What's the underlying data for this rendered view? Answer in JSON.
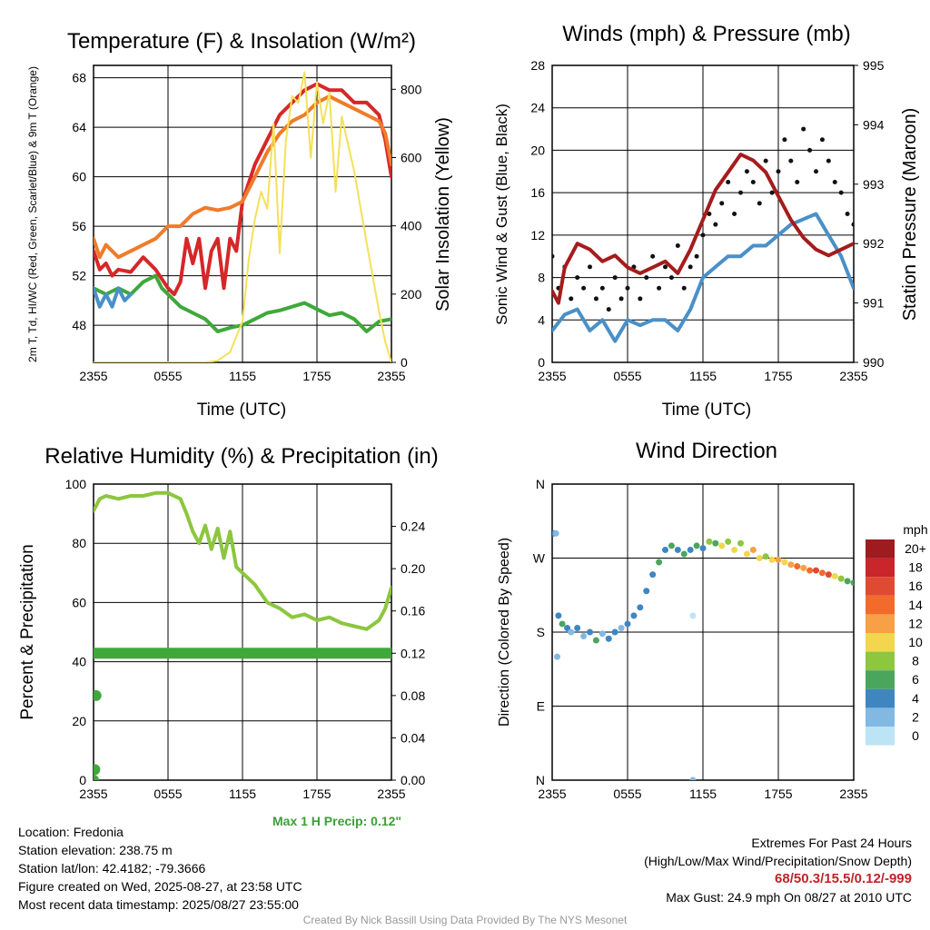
{
  "chart_data": [
    {
      "type": "line",
      "title": "Temperature (F) & Insolation (W/m²)",
      "xlabel": "Time (UTC)",
      "ylabel": "2m T, Td, HI/WC (Red, Green, Scarlet/Blue) & 9m T (Orange)",
      "ylabel_right": "Solar Insolation (Yellow)",
      "x_ticks": [
        "2355",
        "0555",
        "1155",
        "1755",
        "2355"
      ],
      "y_ticks": [
        "48",
        "52",
        "56",
        "60",
        "64",
        "68"
      ],
      "y_right_ticks": [
        "0",
        "200",
        "400",
        "600",
        "800"
      ],
      "xlim_hours": [
        0,
        24
      ],
      "ylim": [
        45,
        69
      ],
      "ylim_right": [
        0,
        870
      ],
      "series": [
        {
          "axis": "left",
          "color": "#d62728",
          "x": [
            0,
            0.5,
            1,
            1.5,
            2,
            3,
            4,
            5,
            6,
            6.5,
            7,
            7.5,
            8,
            8.5,
            9,
            9.5,
            10,
            10.5,
            11,
            11.5,
            12,
            13,
            14,
            15,
            16,
            17,
            18,
            19,
            20,
            21,
            22,
            23,
            23.5,
            24
          ],
          "values": [
            54,
            52.5,
            53,
            52,
            52.5,
            52.3,
            53.5,
            52.5,
            51,
            50.5,
            51.5,
            55,
            53,
            55,
            51,
            54,
            55,
            51,
            55,
            54,
            58,
            61,
            63,
            65,
            66,
            67,
            67.5,
            67,
            67,
            66,
            66,
            65,
            63,
            60
          ]
        },
        {
          "axis": "left",
          "color": "#f07b2a",
          "x": [
            0,
            0.5,
            1,
            2,
            3,
            4,
            5,
            6,
            7,
            8,
            9,
            10,
            11,
            12,
            13,
            14,
            15,
            16,
            17,
            18,
            19,
            20,
            21,
            22,
            23,
            23.5,
            24
          ],
          "values": [
            55,
            53.5,
            54.5,
            53.5,
            54,
            54.5,
            55,
            56,
            56,
            57,
            57.5,
            57.3,
            57.5,
            58,
            60,
            62,
            63.5,
            64.5,
            65,
            66,
            66.5,
            66,
            65.5,
            65,
            64.5,
            63.5,
            61
          ]
        },
        {
          "axis": "left",
          "color": "#3fa83a",
          "x": [
            0,
            1,
            2,
            3,
            4,
            5,
            5.5,
            6,
            7,
            8,
            9,
            10,
            11,
            12,
            13,
            14,
            15,
            16,
            17,
            18,
            19,
            20,
            21,
            22,
            23,
            24
          ],
          "values": [
            51,
            50.5,
            51,
            50.5,
            51.5,
            52,
            51,
            50.5,
            49.5,
            49,
            48.5,
            47.5,
            47.8,
            48,
            48.5,
            49,
            49.2,
            49.5,
            49.8,
            49.3,
            48.8,
            49,
            48.5,
            47.5,
            48.3,
            48.5
          ]
        },
        {
          "axis": "left",
          "color": "#4a90c8",
          "x": [
            0,
            0.5,
            1,
            1.5,
            2,
            2.5,
            3
          ],
          "values": [
            51,
            49.5,
            50.5,
            49.5,
            51,
            50,
            50.5
          ]
        },
        {
          "axis": "right",
          "color": "#f5e05a",
          "x": [
            0,
            9,
            10,
            11,
            12,
            12.5,
            13,
            13.5,
            14,
            14.5,
            15,
            15.5,
            16,
            16.5,
            17,
            17.5,
            18,
            18.5,
            19,
            19.5,
            20,
            21,
            22,
            22.5,
            23,
            23.5,
            24
          ],
          "values": [
            0,
            0,
            5,
            30,
            120,
            300,
            420,
            500,
            450,
            700,
            320,
            650,
            780,
            760,
            850,
            600,
            820,
            700,
            790,
            500,
            720,
            560,
            350,
            250,
            150,
            60,
            0
          ]
        }
      ]
    },
    {
      "type": "line",
      "title": "Winds (mph) & Pressure (mb)",
      "xlabel": "Time (UTC)",
      "ylabel": "Sonic Wind & Gust (Blue, Black)",
      "ylabel_right": "Station Pressure (Maroon)",
      "x_ticks": [
        "2355",
        "0555",
        "1155",
        "1755",
        "2355"
      ],
      "y_ticks": [
        "0",
        "4",
        "8",
        "12",
        "16",
        "20",
        "24",
        "28"
      ],
      "y_right_ticks": [
        "990",
        "991",
        "992",
        "993",
        "994",
        "995"
      ],
      "xlim_hours": [
        0,
        24
      ],
      "ylim": [
        0,
        28
      ],
      "ylim_right": [
        990,
        995
      ],
      "series": [
        {
          "axis": "left",
          "color": "#4a90c8",
          "x": [
            0,
            1,
            2,
            3,
            4,
            5,
            6,
            7,
            8,
            9,
            10,
            11,
            12,
            13,
            14,
            15,
            16,
            17,
            18,
            19,
            20,
            21,
            22,
            23,
            24
          ],
          "values": [
            3,
            4.5,
            5,
            3,
            4,
            2,
            4,
            3.5,
            4,
            4,
            3,
            5,
            8,
            9,
            10,
            10,
            11,
            11,
            12,
            13,
            13.5,
            14,
            12,
            10,
            7
          ]
        },
        {
          "axis": "left",
          "color": "#111111",
          "type": "scatter",
          "x": [
            0,
            0.5,
            1,
            1.5,
            2,
            2.5,
            3,
            3.5,
            4,
            4.5,
            5,
            5.5,
            6,
            6.5,
            7,
            7.5,
            8,
            8.5,
            9,
            9.5,
            10,
            10.5,
            11,
            11.5,
            12,
            12.5,
            13,
            13.5,
            14,
            14.5,
            15,
            15.5,
            16,
            16.5,
            17,
            17.5,
            18,
            18.5,
            19,
            19.5,
            20,
            20.5,
            21,
            21.5,
            22,
            22.5,
            23,
            23.5,
            24
          ],
          "values": [
            10,
            7,
            9,
            6,
            8,
            7,
            9,
            6,
            7,
            5,
            8,
            6,
            7,
            9,
            6,
            8,
            10,
            7,
            9,
            8,
            11,
            7,
            9,
            10,
            12,
            14,
            13,
            15,
            17,
            14,
            16,
            18,
            17,
            15,
            19,
            16,
            18,
            21,
            19,
            17,
            22,
            20,
            18,
            21,
            19,
            17,
            16,
            14,
            13
          ]
        },
        {
          "axis": "right",
          "color": "#a51c1c",
          "x": [
            0,
            0.5,
            1,
            2,
            3,
            4,
            5,
            6,
            7,
            8,
            9,
            10,
            11,
            12,
            13,
            14,
            15,
            16,
            17,
            18,
            19,
            20,
            21,
            22,
            23,
            24
          ],
          "values": [
            991.2,
            991.0,
            991.6,
            992.0,
            991.9,
            991.7,
            991.8,
            991.6,
            991.5,
            991.6,
            991.7,
            991.5,
            991.9,
            992.4,
            992.9,
            993.2,
            993.5,
            993.4,
            993.2,
            992.8,
            992.4,
            992.1,
            991.9,
            991.8,
            991.9,
            992.0
          ]
        }
      ]
    },
    {
      "type": "line",
      "title": "Relative Humidity (%) & Precipitation (in)",
      "xlabel": "",
      "ylabel": "Percent & Precipitation",
      "x_ticks": [
        "2355",
        "0555",
        "1155",
        "1755",
        "2355"
      ],
      "y_ticks": [
        "0",
        "20",
        "40",
        "60",
        "80",
        "100"
      ],
      "y_right_ticks": [
        "0.00",
        "0.04",
        "0.08",
        "0.12",
        "0.16",
        "0.20",
        "0.24"
      ],
      "xlim_hours": [
        0,
        24
      ],
      "ylim": [
        0,
        100
      ],
      "ylim_right": [
        0,
        0.28
      ],
      "series": [
        {
          "axis": "left",
          "color": "#8cc63f",
          "x": [
            0,
            0.5,
            1,
            2,
            3,
            4,
            5,
            6,
            7,
            7.5,
            8,
            8.5,
            9,
            9.5,
            10,
            10.5,
            11,
            11.5,
            12,
            13,
            14,
            15,
            16,
            17,
            18,
            19,
            20,
            21,
            22,
            23,
            23.5,
            24
          ],
          "values": [
            91,
            95,
            96,
            95,
            96,
            96,
            97,
            97,
            95,
            90,
            84,
            80,
            86,
            78,
            85,
            75,
            84,
            72,
            70,
            66,
            60,
            58,
            55,
            56,
            54,
            55,
            53,
            52,
            51,
            54,
            58,
            65
          ]
        },
        {
          "axis": "right",
          "color": "#3fa83a",
          "x": [
            0,
            24
          ],
          "values": [
            0.12,
            0.12
          ]
        },
        {
          "axis": "right",
          "color": "#3fa83a",
          "type": "scatter",
          "x": [
            0,
            0.1,
            0.2
          ],
          "values": [
            0.0,
            0.01,
            0.08
          ]
        }
      ]
    },
    {
      "type": "scatter",
      "title": "Wind Direction",
      "ylabel": "Direction (Colored By Speed)",
      "x_ticks": [
        "2355",
        "0555",
        "1155",
        "1755",
        "2355"
      ],
      "y_ticks": [
        "N",
        "E",
        "S",
        "W",
        "N"
      ],
      "legend_title": "mph",
      "legend": [
        "20+",
        "18",
        "16",
        "14",
        "12",
        "10",
        "8",
        "6",
        "4",
        "2",
        "0"
      ],
      "legend_colors": [
        "#9e1b20",
        "#c9252b",
        "#e04a33",
        "#f26a2c",
        "#f8a046",
        "#f2d64e",
        "#8dc63f",
        "#4aa55d",
        "#3f86c1",
        "#82b9e3",
        "#bde4f5"
      ],
      "points": [
        [
          0.1,
          300,
          "#3f86c1"
        ],
        [
          0.3,
          300,
          "#82b9e3"
        ],
        [
          0.5,
          200,
          "#3f86c1"
        ],
        [
          0.8,
          190,
          "#4aa55d"
        ],
        [
          1.2,
          185,
          "#3f86c1"
        ],
        [
          1.5,
          180,
          "#82b9e3"
        ],
        [
          2,
          185,
          "#3f86c1"
        ],
        [
          2.5,
          175,
          "#82b9e3"
        ],
        [
          3,
          180,
          "#3f86c1"
        ],
        [
          3.5,
          170,
          "#4aa55d"
        ],
        [
          4,
          178,
          "#82b9e3"
        ],
        [
          4.5,
          172,
          "#3f86c1"
        ],
        [
          5,
          180,
          "#3f86c1"
        ],
        [
          5.5,
          185,
          "#82b9e3"
        ],
        [
          6,
          190,
          "#3f86c1"
        ],
        [
          6.5,
          200,
          "#3f86c1"
        ],
        [
          7,
          210,
          "#3f86c1"
        ],
        [
          7.5,
          230,
          "#3f86c1"
        ],
        [
          8,
          250,
          "#3f86c1"
        ],
        [
          8.5,
          265,
          "#4aa55d"
        ],
        [
          9,
          280,
          "#3f86c1"
        ],
        [
          9.5,
          285,
          "#4aa55d"
        ],
        [
          10,
          280,
          "#3f86c1"
        ],
        [
          10.5,
          275,
          "#4aa55d"
        ],
        [
          11,
          280,
          "#3f86c1"
        ],
        [
          11.5,
          285,
          "#4aa55d"
        ],
        [
          12,
          282,
          "#3f86c1"
        ],
        [
          12.5,
          290,
          "#8dc63f"
        ],
        [
          13,
          288,
          "#4aa55d"
        ],
        [
          13.5,
          285,
          "#f2d64e"
        ],
        [
          14,
          290,
          "#8dc63f"
        ],
        [
          14.5,
          280,
          "#f2d64e"
        ],
        [
          15,
          288,
          "#8dc63f"
        ],
        [
          15.5,
          275,
          "#f2d64e"
        ],
        [
          16,
          280,
          "#f8a046"
        ],
        [
          16.5,
          270,
          "#f2d64e"
        ],
        [
          17,
          272,
          "#8dc63f"
        ],
        [
          17.5,
          268,
          "#f2d64e"
        ],
        [
          18,
          268,
          "#f8a046"
        ],
        [
          18.5,
          265,
          "#f2d64e"
        ],
        [
          19,
          262,
          "#f8a046"
        ],
        [
          19.5,
          260,
          "#f26a2c"
        ],
        [
          20,
          258,
          "#f8a046"
        ],
        [
          20.5,
          255,
          "#f26a2c"
        ],
        [
          21,
          255,
          "#e04a33"
        ],
        [
          21.5,
          252,
          "#f26a2c"
        ],
        [
          22,
          250,
          "#e04a33"
        ],
        [
          22.5,
          248,
          "#f2d64e"
        ],
        [
          23,
          245,
          "#8dc63f"
        ],
        [
          23.5,
          242,
          "#4aa55d"
        ],
        [
          24,
          240,
          "#4aa55d"
        ],
        [
          11.2,
          200,
          "#bde4f5"
        ],
        [
          11.2,
          0,
          "#82b9e3"
        ],
        [
          0.4,
          150,
          "#82b9e3"
        ]
      ]
    }
  ],
  "info": {
    "location": "Location: Fredonia",
    "elevation": "Station elevation: 238.75 m",
    "latlon": "Station lat/lon: 42.4182; -79.3666",
    "created": "Figure created on Wed, 2025-08-27, at 23:58 UTC",
    "recent": "Most recent data timestamp: 2025/08/27 23:55:00"
  },
  "extremes": {
    "title": "Extremes For Past 24 Hours",
    "subtitle": "(High/Low/Max Wind/Precipitation/Snow Depth)",
    "values": "68/50.3/15.5/0.12/-999",
    "gust": "Max Gust: 24.9 mph On 08/27 at 2010 UTC"
  },
  "precip_note": "Max 1 H Precip: 0.12\"",
  "credit": "Created By Nick Bassill Using Data Provided By The NYS Mesonet"
}
